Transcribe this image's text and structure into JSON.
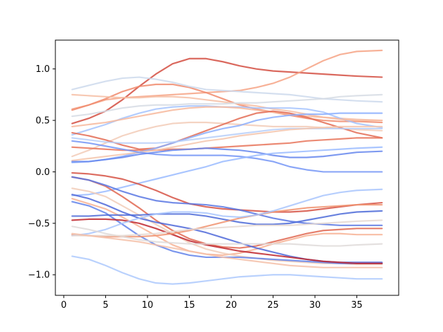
{
  "chart_data": {
    "type": "line",
    "title": "",
    "xlabel": "",
    "ylabel": "",
    "xlim": [
      -1.0,
      40.0
    ],
    "ylim": [
      -1.2,
      1.28
    ],
    "grid": false,
    "legend": "none",
    "colormap": "coolwarm",
    "x_ticks": [
      0,
      5,
      10,
      15,
      20,
      25,
      30,
      35
    ],
    "y_ticks": [
      -1.0,
      -0.5,
      0.0,
      0.5,
      1.0
    ],
    "x_tick_labels": [
      "0",
      "5",
      "10",
      "15",
      "20",
      "25",
      "30",
      "35"
    ],
    "y_tick_labels": [
      "−1.0",
      "−0.5",
      "0.0",
      "0.5",
      "1.0"
    ],
    "x": [
      1,
      3,
      5,
      7,
      9,
      11,
      13,
      15,
      17,
      19,
      21,
      23,
      25,
      27,
      29,
      31,
      33,
      35,
      38
    ],
    "series": [
      {
        "color": "#d44e41",
        "values": [
          0.47,
          0.52,
          0.59,
          0.7,
          0.83,
          0.95,
          1.05,
          1.1,
          1.1,
          1.07,
          1.03,
          1.0,
          0.98,
          0.97,
          0.96,
          0.95,
          0.94,
          0.93,
          0.92
        ]
      },
      {
        "color": "#f6a385",
        "values": [
          0.61,
          0.65,
          0.7,
          0.72,
          0.73,
          0.74,
          0.75,
          0.76,
          0.77,
          0.78,
          0.79,
          0.82,
          0.86,
          0.92,
          1.0,
          1.08,
          1.14,
          1.17,
          1.18
        ]
      },
      {
        "color": "#f08a6c",
        "values": [
          0.6,
          0.65,
          0.71,
          0.78,
          0.83,
          0.85,
          0.85,
          0.82,
          0.77,
          0.71,
          0.65,
          0.61,
          0.58,
          0.55,
          0.52,
          0.5,
          0.49,
          0.49,
          0.48
        ]
      },
      {
        "color": "#f6bea5",
        "values": [
          0.75,
          0.74,
          0.73,
          0.72,
          0.72,
          0.73,
          0.73,
          0.72,
          0.7,
          0.68,
          0.66,
          0.64,
          0.61,
          0.59,
          0.56,
          0.53,
          0.52,
          0.51,
          0.5
        ]
      },
      {
        "color": "#cdd9ec",
        "values": [
          0.8,
          0.84,
          0.88,
          0.91,
          0.92,
          0.9,
          0.87,
          0.83,
          0.8,
          0.79,
          0.78,
          0.77,
          0.76,
          0.75,
          0.73,
          0.71,
          0.7,
          0.69,
          0.68
        ]
      },
      {
        "color": "#d6dce4",
        "values": [
          0.54,
          0.56,
          0.59,
          0.62,
          0.64,
          0.65,
          0.65,
          0.66,
          0.66,
          0.66,
          0.67,
          0.67,
          0.68,
          0.69,
          0.7,
          0.71,
          0.73,
          0.74,
          0.75
        ]
      },
      {
        "color": "#a5c3fe",
        "values": [
          0.36,
          0.41,
          0.46,
          0.52,
          0.57,
          0.61,
          0.63,
          0.64,
          0.64,
          0.63,
          0.63,
          0.62,
          0.62,
          0.62,
          0.61,
          0.58,
          0.52,
          0.47,
          0.43
        ]
      },
      {
        "color": "#f7b89c",
        "values": [
          0.44,
          0.46,
          0.48,
          0.51,
          0.54,
          0.57,
          0.6,
          0.62,
          0.63,
          0.63,
          0.62,
          0.6,
          0.58,
          0.56,
          0.54,
          0.53,
          0.51,
          0.5,
          0.5
        ]
      },
      {
        "color": "#f2cbb7",
        "values": [
          0.15,
          0.21,
          0.28,
          0.35,
          0.4,
          0.44,
          0.47,
          0.48,
          0.48,
          0.47,
          0.46,
          0.45,
          0.44,
          0.44,
          0.44,
          0.43,
          0.42,
          0.41,
          0.4
        ]
      },
      {
        "color": "#e36c55",
        "values": [
          0.38,
          0.35,
          0.31,
          0.26,
          0.22,
          0.23,
          0.28,
          0.34,
          0.4,
          0.46,
          0.52,
          0.57,
          0.59,
          0.57,
          0.53,
          0.48,
          0.43,
          0.38,
          0.33
        ]
      },
      {
        "color": "#e7745b",
        "values": [
          0.24,
          0.23,
          0.22,
          0.21,
          0.21,
          0.21,
          0.22,
          0.22,
          0.23,
          0.24,
          0.25,
          0.26,
          0.27,
          0.28,
          0.3,
          0.31,
          0.32,
          0.33,
          0.33
        ]
      },
      {
        "color": "#8caffe",
        "values": [
          0.09,
          0.1,
          0.12,
          0.15,
          0.19,
          0.23,
          0.28,
          0.33,
          0.38,
          0.42,
          0.45,
          0.5,
          0.53,
          0.55,
          0.56,
          0.56,
          0.57,
          0.57,
          0.57
        ]
      },
      {
        "color": "#b7cff9",
        "values": [
          0.33,
          0.31,
          0.29,
          0.28,
          0.28,
          0.28,
          0.29,
          0.31,
          0.33,
          0.35,
          0.37,
          0.39,
          0.41,
          0.42,
          0.42,
          0.42,
          0.42,
          0.42,
          0.42
        ]
      },
      {
        "color": "#f4c5ad",
        "values": [
          0.11,
          0.13,
          0.15,
          0.17,
          0.19,
          0.21,
          0.24,
          0.27,
          0.3,
          0.32,
          0.35,
          0.37,
          0.39,
          0.41,
          0.42,
          0.43,
          0.44,
          0.44,
          0.44
        ]
      },
      {
        "color": "#7597f6",
        "values": [
          0.3,
          0.28,
          0.25,
          0.22,
          0.19,
          0.17,
          0.16,
          0.16,
          0.16,
          0.16,
          0.15,
          0.13,
          0.1,
          0.05,
          0.02,
          0.0,
          0.0,
          0.0,
          0.0
        ]
      },
      {
        "color": "#6687ed",
        "values": [
          0.1,
          0.1,
          0.12,
          0.14,
          0.17,
          0.19,
          0.21,
          0.22,
          0.23,
          0.22,
          0.21,
          0.19,
          0.16,
          0.14,
          0.14,
          0.15,
          0.17,
          0.19,
          0.2
        ]
      },
      {
        "color": "#9abbff",
        "values": [
          -0.23,
          -0.22,
          -0.19,
          -0.15,
          -0.11,
          -0.07,
          -0.03,
          0.01,
          0.05,
          0.1,
          0.13,
          0.16,
          0.18,
          0.19,
          0.2,
          0.21,
          0.22,
          0.23,
          0.24
        ]
      },
      {
        "color": "#d65244",
        "values": [
          -0.01,
          -0.02,
          -0.04,
          -0.07,
          -0.12,
          -0.18,
          -0.25,
          -0.31,
          -0.34,
          -0.36,
          -0.37,
          -0.38,
          -0.39,
          -0.39,
          -0.38,
          -0.36,
          -0.34,
          -0.32,
          -0.3
        ]
      },
      {
        "color": "#e16751",
        "values": [
          -0.05,
          -0.08,
          -0.14,
          -0.24,
          -0.35,
          -0.47,
          -0.57,
          -0.65,
          -0.7,
          -0.73,
          -0.74,
          -0.72,
          -0.68,
          -0.64,
          -0.6,
          -0.57,
          -0.56,
          -0.55,
          -0.55
        ]
      },
      {
        "color": "#5977e3",
        "values": [
          -0.05,
          -0.08,
          -0.13,
          -0.19,
          -0.24,
          -0.28,
          -0.3,
          -0.31,
          -0.32,
          -0.34,
          -0.37,
          -0.41,
          -0.45,
          -0.48,
          -0.5,
          -0.51,
          -0.52,
          -0.52,
          -0.52
        ]
      },
      {
        "color": "#f7b194",
        "values": [
          -0.26,
          -0.31,
          -0.36,
          -0.44,
          -0.53,
          -0.62,
          -0.71,
          -0.77,
          -0.8,
          -0.81,
          -0.79,
          -0.75,
          -0.7,
          -0.66,
          -0.62,
          -0.6,
          -0.6,
          -0.61,
          -0.61
        ]
      },
      {
        "color": "#f1ccb8",
        "values": [
          -0.16,
          -0.19,
          -0.24,
          -0.33,
          -0.42,
          -0.51,
          -0.6,
          -0.69,
          -0.75,
          -0.79,
          -0.82,
          -0.84,
          -0.86,
          -0.87,
          -0.88,
          -0.89,
          -0.89,
          -0.9,
          -0.9
        ]
      },
      {
        "color": "#4f69d9",
        "values": [
          -0.22,
          -0.26,
          -0.32,
          -0.39,
          -0.45,
          -0.49,
          -0.52,
          -0.55,
          -0.59,
          -0.64,
          -0.69,
          -0.74,
          -0.78,
          -0.82,
          -0.85,
          -0.87,
          -0.88,
          -0.88,
          -0.88
        ]
      },
      {
        "color": "#6282ea",
        "values": [
          -0.29,
          -0.33,
          -0.4,
          -0.51,
          -0.62,
          -0.71,
          -0.77,
          -0.81,
          -0.83,
          -0.83,
          -0.83,
          -0.84,
          -0.85,
          -0.86,
          -0.87,
          -0.88,
          -0.89,
          -0.89,
          -0.89
        ]
      },
      {
        "color": "#c0282f",
        "values": [
          -0.47,
          -0.46,
          -0.46,
          -0.47,
          -0.5,
          -0.55,
          -0.61,
          -0.67,
          -0.71,
          -0.74,
          -0.77,
          -0.79,
          -0.81,
          -0.83,
          -0.85,
          -0.87,
          -0.88,
          -0.89,
          -0.89
        ]
      },
      {
        "color": "#4e6bd8",
        "values": [
          -0.43,
          -0.43,
          -0.42,
          -0.42,
          -0.42,
          -0.41,
          -0.41,
          -0.41,
          -0.43,
          -0.46,
          -0.49,
          -0.51,
          -0.51,
          -0.5,
          -0.47,
          -0.44,
          -0.41,
          -0.39,
          -0.38
        ]
      },
      {
        "color": "#f0926f",
        "values": [
          -0.61,
          -0.62,
          -0.63,
          -0.63,
          -0.63,
          -0.62,
          -0.6,
          -0.57,
          -0.53,
          -0.49,
          -0.45,
          -0.42,
          -0.39,
          -0.37,
          -0.35,
          -0.34,
          -0.33,
          -0.32,
          -0.32
        ]
      },
      {
        "color": "#a9c6fd",
        "values": [
          -0.62,
          -0.6,
          -0.56,
          -0.5,
          -0.45,
          -0.41,
          -0.39,
          -0.39,
          -0.4,
          -0.43,
          -0.44,
          -0.42,
          -0.38,
          -0.33,
          -0.28,
          -0.23,
          -0.2,
          -0.18,
          -0.17
        ]
      },
      {
        "color": "#dfdbd9",
        "values": [
          -0.53,
          -0.56,
          -0.6,
          -0.63,
          -0.66,
          -0.68,
          -0.69,
          -0.7,
          -0.7,
          -0.7,
          -0.7,
          -0.7,
          -0.7,
          -0.7,
          -0.71,
          -0.72,
          -0.72,
          -0.71,
          -0.7
        ]
      },
      {
        "color": "#e5d8d1",
        "values": [
          -0.62,
          -0.62,
          -0.62,
          -0.62,
          -0.61,
          -0.6,
          -0.58,
          -0.56,
          -0.55,
          -0.54,
          -0.53,
          -0.52,
          -0.52,
          -0.52,
          -0.51,
          -0.5,
          -0.49,
          -0.48,
          -0.47
        ]
      },
      {
        "color": "#f5c1a9",
        "values": [
          -0.6,
          -0.62,
          -0.64,
          -0.66,
          -0.68,
          -0.71,
          -0.74,
          -0.77,
          -0.8,
          -0.83,
          -0.85,
          -0.87,
          -0.89,
          -0.91,
          -0.92,
          -0.93,
          -0.93,
          -0.93,
          -0.93
        ]
      },
      {
        "color": "#adc9fd",
        "values": [
          -0.82,
          -0.85,
          -0.91,
          -0.98,
          -1.04,
          -1.08,
          -1.09,
          -1.08,
          -1.06,
          -1.04,
          -1.02,
          -1.01,
          -1.0,
          -1.0,
          -1.01,
          -1.02,
          -1.03,
          -1.04,
          -1.04
        ]
      }
    ]
  }
}
